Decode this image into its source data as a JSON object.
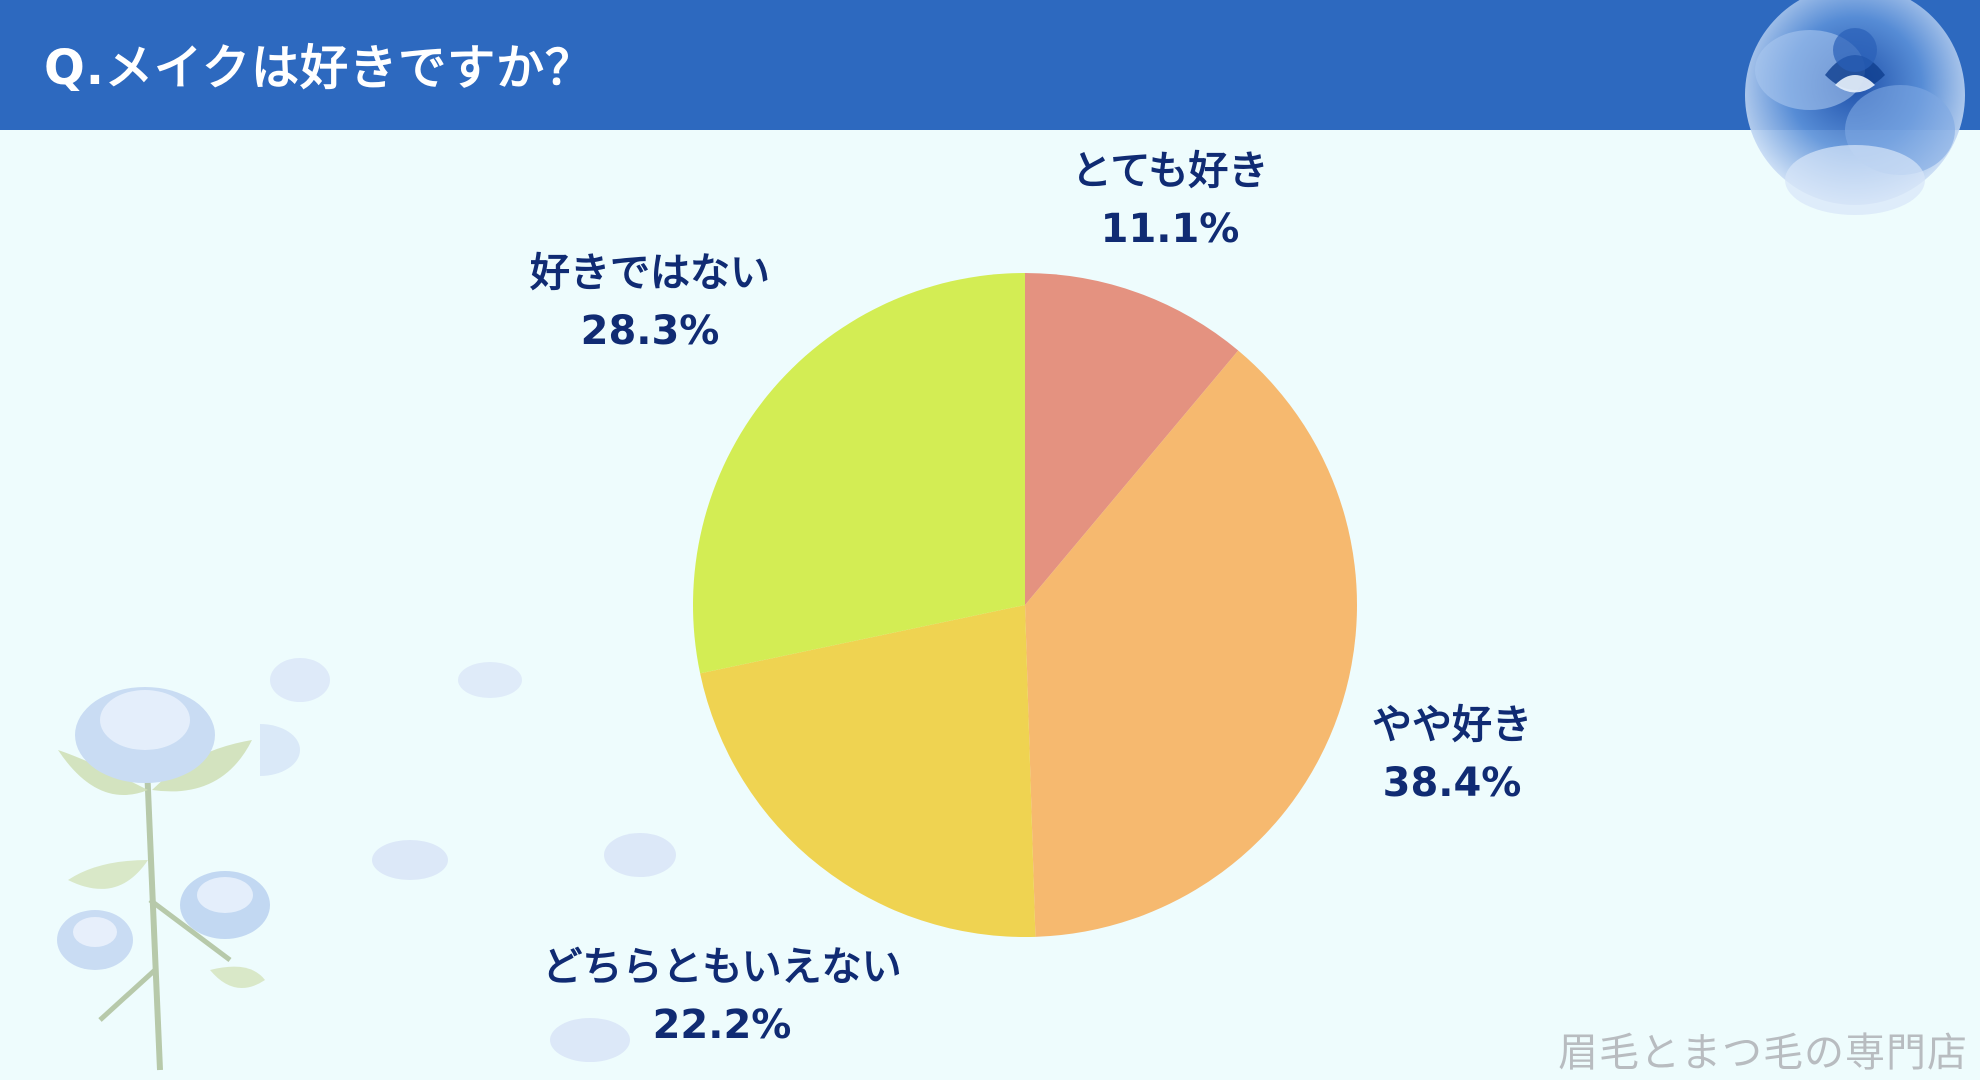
{
  "header": {
    "title": "Q.メイクは好きですか？",
    "color": "#2d69bf"
  },
  "chart_data": {
    "type": "pie",
    "categories": [
      "とても好き",
      "やや好き",
      "どちらともいえない",
      "好きではない"
    ],
    "values": [
      11.1,
      38.4,
      22.2,
      28.3
    ],
    "value_labels": [
      "11.1%",
      "38.4%",
      "22.2%",
      "28.3%"
    ],
    "colors": [
      "#e49280",
      "#f6b96f",
      "#efd351",
      "#d3ed54"
    ],
    "start": "12 o'clock",
    "direction": "clockwise",
    "title": "Q.メイクは好きですか？"
  },
  "watermark": "眉毛とまつ毛の専門店",
  "decorations": [
    "blue-rose-icon",
    "blue-rose-stem-icon",
    "petal-icon"
  ]
}
